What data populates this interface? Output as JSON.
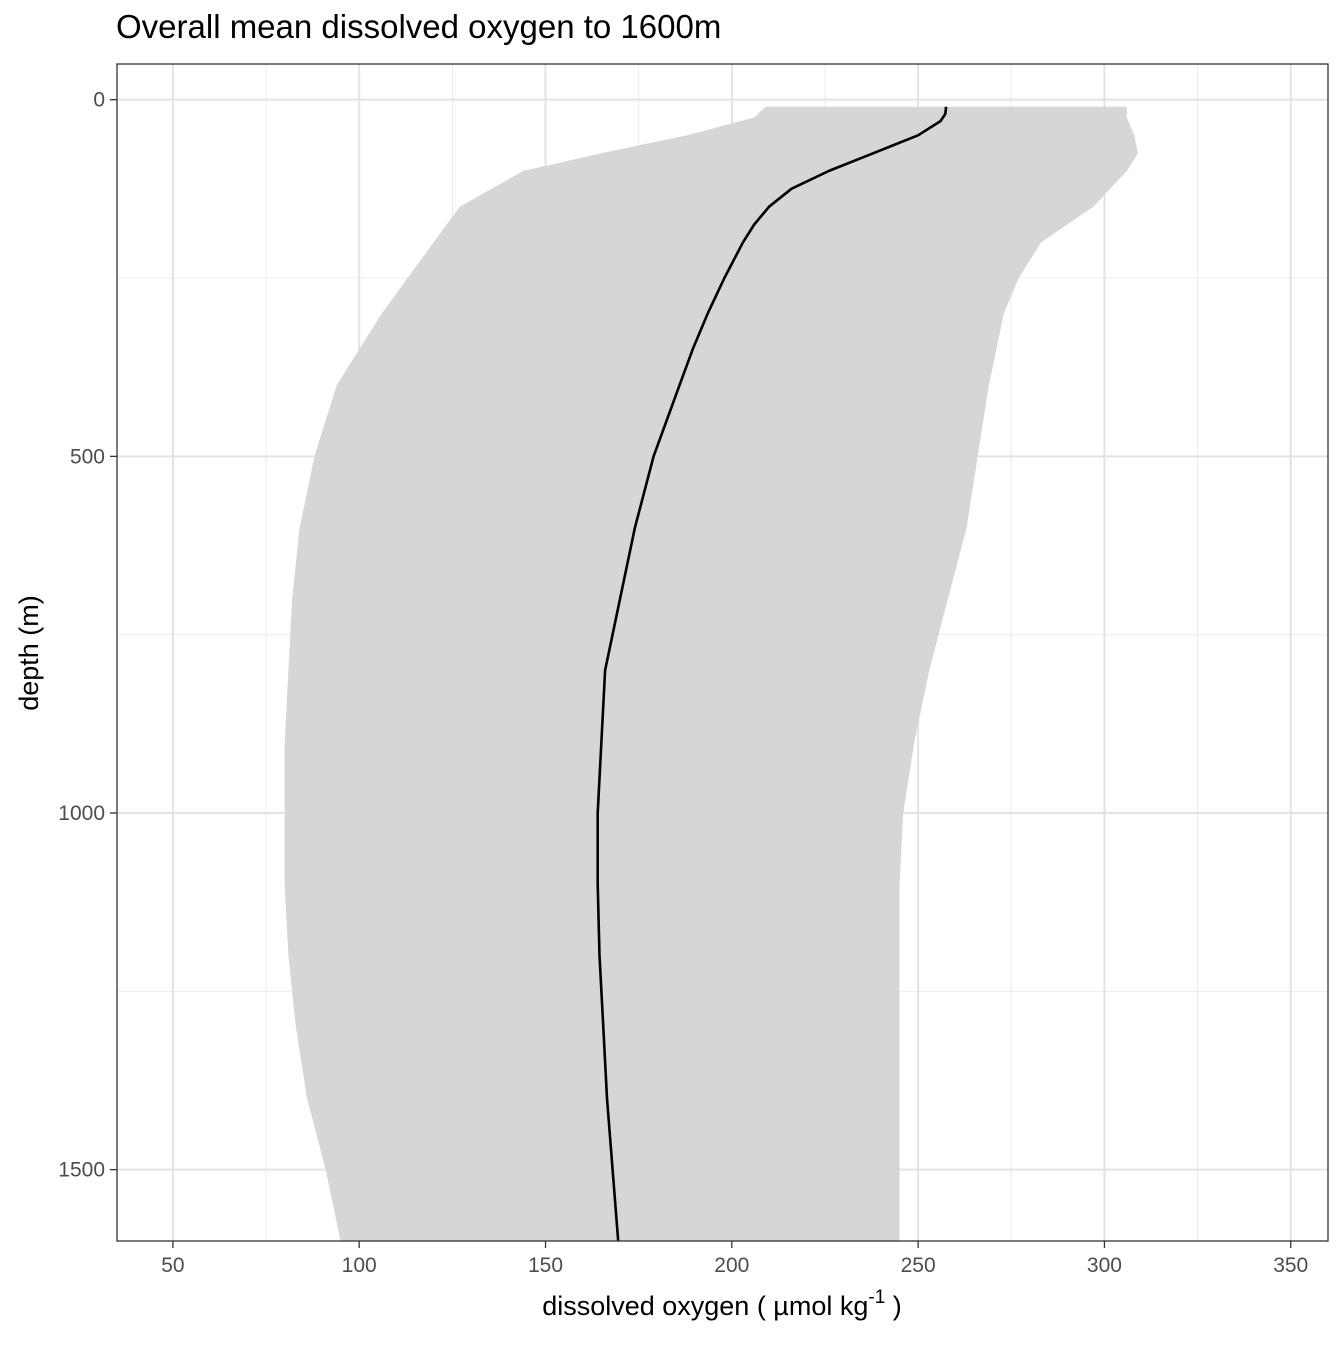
{
  "chart_data": {
    "type": "line",
    "title": "Overall mean dissolved oxygen to 1600m",
    "xlabel": {
      "main": "dissolved oxygen ( µmol kg",
      "superscript": "-1",
      "close": " )"
    },
    "ylabel": "depth (m)",
    "xlim": [
      35,
      360
    ],
    "ylim": [
      1600,
      -50
    ],
    "y_reversed": true,
    "grid": true,
    "x_ticks": [
      50,
      100,
      150,
      200,
      250,
      300,
      350
    ],
    "y_ticks": [
      0,
      500,
      1000,
      1500
    ],
    "x_tick_labels": [
      "50",
      "100",
      "150",
      "200",
      "250",
      "300",
      "350"
    ],
    "y_tick_labels": [
      "0",
      "500",
      "1000",
      "1500"
    ],
    "series": [
      {
        "kind": "ribbon",
        "color": "#d6d6d6",
        "depth": [
          10,
          25,
          50,
          75,
          100,
          150,
          200,
          250,
          300,
          400,
          500,
          600,
          700,
          800,
          900,
          1000,
          1100,
          1200,
          1300,
          1400,
          1500,
          1600
        ],
        "lower": [
          209,
          206,
          188,
          165,
          144,
          127,
          120,
          113,
          106,
          94,
          88,
          84,
          82,
          81,
          80,
          80,
          80,
          81,
          83,
          86,
          91,
          95
        ],
        "upper": [
          306,
          306,
          308,
          309,
          306,
          297,
          283,
          277,
          273,
          269,
          266,
          263,
          258,
          253,
          249,
          246,
          245,
          245,
          245,
          245,
          245,
          245
        ]
      },
      {
        "kind": "line",
        "color": "#000000",
        "depth": [
          10,
          20,
          30,
          50,
          75,
          100,
          125,
          150,
          175,
          200,
          250,
          300,
          350,
          400,
          500,
          600,
          700,
          800,
          900,
          1000,
          1100,
          1200,
          1300,
          1400,
          1500,
          1600
        ],
        "values": [
          257.5,
          257.3,
          256,
          250,
          238,
          226,
          216,
          210,
          206,
          203,
          198,
          193.5,
          189.5,
          186,
          179,
          174,
          170,
          166,
          165,
          164,
          164,
          164.5,
          165.5,
          166.5,
          168,
          169.5
        ]
      }
    ]
  }
}
